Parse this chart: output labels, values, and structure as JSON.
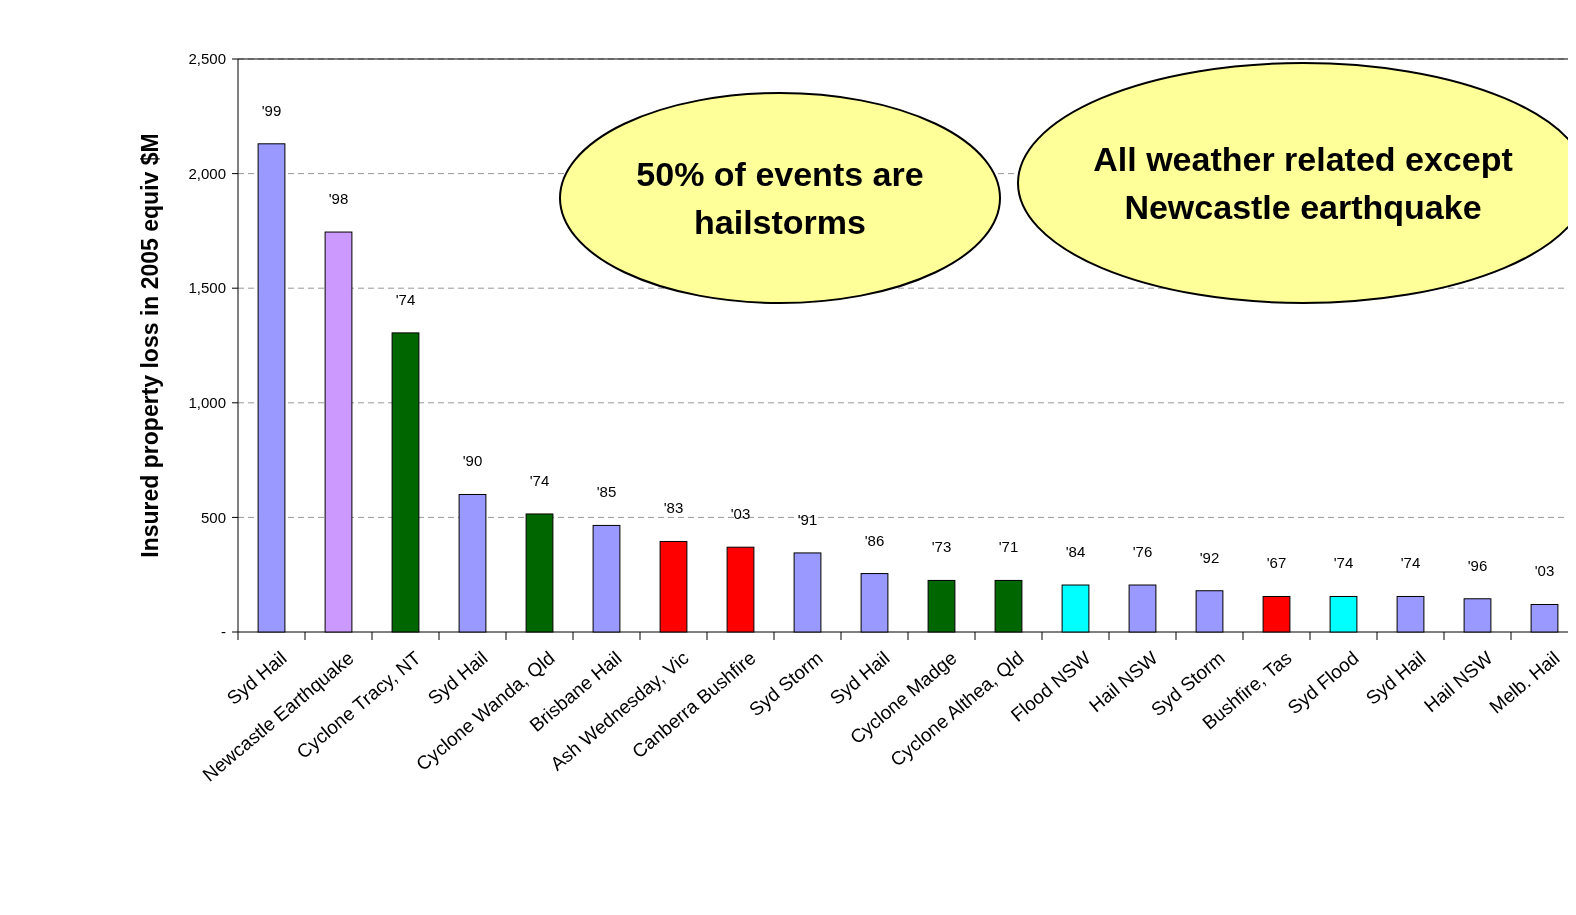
{
  "chart_data": {
    "type": "bar",
    "ylabel": "Insured property loss in 2005 equiv $M",
    "categories": [
      "Syd Hail",
      "Newcastle Earthquake",
      "Cyclone Tracy, NT",
      "Syd Hail",
      "Cyclone Wanda, Qld",
      "Brisbane Hail",
      "Ash Wednesday, Vic",
      "Canberra Bushfire",
      "Syd Storm",
      "Syd Hail",
      "Cyclone Madge",
      "Cyclone Althea, Qld",
      "Flood NSW",
      "Hail NSW",
      "Syd Storm",
      "Bushfire, Tas",
      "Syd Flood",
      "Syd Hail",
      "Hail NSW",
      "Melb. Hail"
    ],
    "values": [
      2130,
      1745,
      1305,
      600,
      515,
      465,
      395,
      370,
      345,
      255,
      225,
      225,
      205,
      205,
      180,
      155,
      155,
      155,
      145,
      120
    ],
    "colors": [
      "#9999ff",
      "#cc99ff",
      "#006600",
      "#9999ff",
      "#006600",
      "#9999ff",
      "#ff0000",
      "#ff0000",
      "#9999ff",
      "#9999ff",
      "#006600",
      "#006600",
      "#00ffff",
      "#9999ff",
      "#9999ff",
      "#ff0000",
      "#00ffff",
      "#9999ff",
      "#9999ff",
      "#9999ff"
    ],
    "ylim": [
      0,
      2500
    ],
    "yticks": [
      {
        "value": 0,
        "label": "-"
      },
      {
        "value": 500,
        "label": "500"
      },
      {
        "value": 1000,
        "label": "1,000"
      },
      {
        "value": 1500,
        "label": "1,500"
      },
      {
        "value": 2000,
        "label": "2,000"
      },
      {
        "value": 2500,
        "label": "2,500"
      }
    ],
    "grid": "y",
    "annotations": [
      "50% of events are\nhailstorms",
      "All weather related except\nNewcastle earthquake",
      "'99",
      "'98",
      "'74",
      "'90",
      "'74",
      "'85",
      "'83",
      "'03",
      "'91",
      "'86",
      "'73",
      "'71",
      "'84",
      "'76",
      "'92",
      "'67",
      "'74",
      "'74",
      "'96",
      "'03"
    ]
  }
}
